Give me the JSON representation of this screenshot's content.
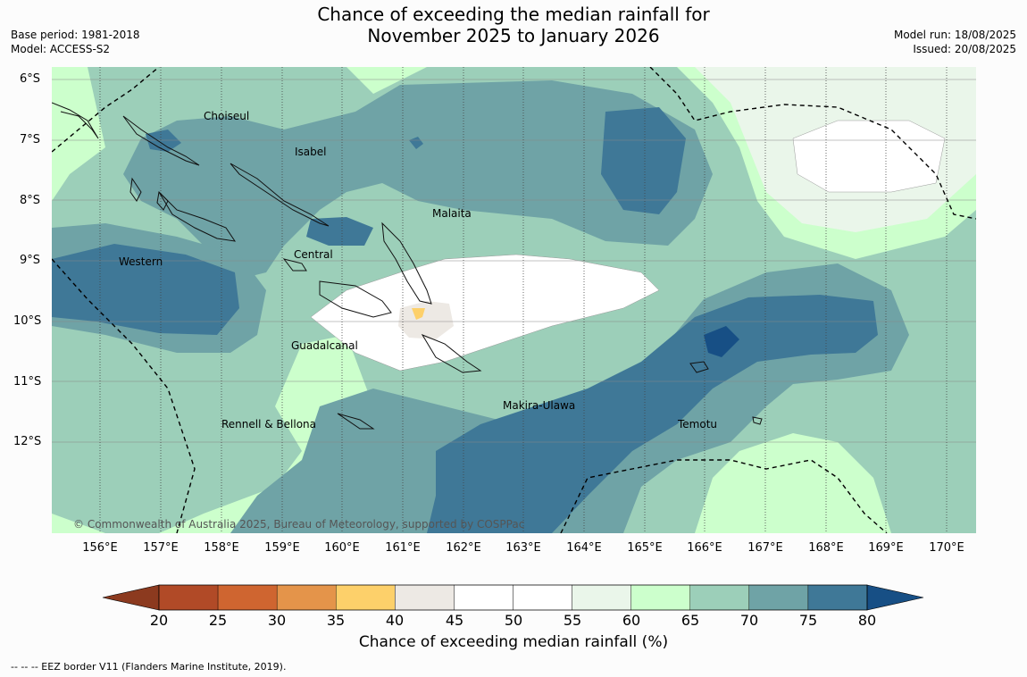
{
  "header": {
    "title_line1": "Chance of exceeding the median rainfall for",
    "title_line2": "November 2025 to January 2026",
    "base_period": "Base period: 1981-2018",
    "model": "Model: ACCESS-S2",
    "model_run": "Model run: 18/08/2025",
    "issued": "Issued: 20/08/2025"
  },
  "map": {
    "lat_labels": [
      "6°S",
      "7°S",
      "8°S",
      "9°S",
      "10°S",
      "11°S",
      "12°S"
    ],
    "lon_labels": [
      "156°E",
      "157°E",
      "158°E",
      "159°E",
      "160°E",
      "161°E",
      "162°E",
      "163°E",
      "164°E",
      "165°E",
      "166°E",
      "167°E",
      "168°E",
      "169°E",
      "170°E"
    ],
    "places": [
      "Choiseul",
      "Isabel",
      "Malaita",
      "Western",
      "Central",
      "Guadalcanal",
      "Makira-Ulawa",
      "Temotu",
      "Rennell & Bellona"
    ],
    "copyright": "© Commonwealth of Australia 2025, Bureau of Meteorology, supported by COSPPac"
  },
  "colorbar": {
    "ticks": [
      "20",
      "25",
      "30",
      "35",
      "40",
      "45",
      "50",
      "55",
      "60",
      "65",
      "70",
      "75",
      "80"
    ],
    "colors": [
      "#b14a27",
      "#cf6530",
      "#e4944a",
      "#fdd06a",
      "#ede9e4",
      "#ffffff",
      "#ffffff",
      "#eaf6ea",
      "#ccffcc",
      "#9ccfb9",
      "#6fa3a6",
      "#3f7897"
    ],
    "below_color": "#8c3a1f",
    "above_color": "#174f85",
    "label": "Chance of exceeding median rainfall (%)"
  },
  "footnote": "--  --  -- EEZ border V11 (Flanders Marine Institute, 2019)."
}
